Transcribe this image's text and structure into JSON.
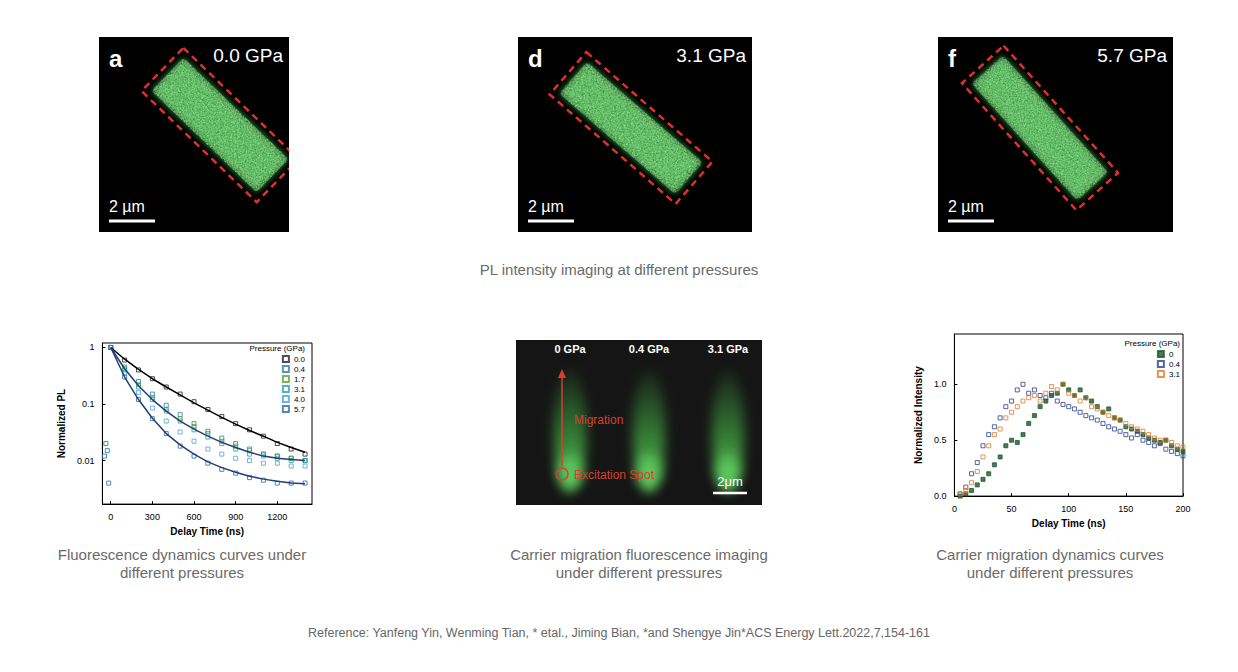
{
  "panels": [
    {
      "letter": "a",
      "pressure": "0.0 GPa",
      "scale_bar": "2 µm"
    },
    {
      "letter": "d",
      "pressure": "3.1 GPa",
      "scale_bar": "2 µm"
    },
    {
      "letter": "f",
      "pressure": "5.7 GPa",
      "scale_bar": "2 µm"
    }
  ],
  "panels_caption": "PL intensity imaging at different pressures",
  "chart_data": [
    {
      "type": "scatter",
      "caption": "Fluorescence dynamics curves under different pressures",
      "x_label": "Delay Time (ns)",
      "y_label": "Normalized PL",
      "log": "y",
      "grid": false,
      "legend": "upper right",
      "legend_title": "Pressure (GPa)",
      "xlim": [
        -60,
        1450
      ],
      "xticks": [
        0,
        300,
        600,
        900,
        1200
      ],
      "ylim": [
        0.0017,
        1.2
      ],
      "yticks": [
        0.01,
        0.1,
        1
      ],
      "series": [
        {
          "name": "0.0",
          "color": "#222222",
          "marker": "open_square",
          "x": [
            0,
            100,
            200,
            300,
            400,
            500,
            600,
            700,
            800,
            900,
            1000,
            1100,
            1200,
            1300,
            1400
          ],
          "values": [
            1,
            0.6,
            0.4,
            0.28,
            0.2,
            0.15,
            0.11,
            0.08,
            0.06,
            0.045,
            0.035,
            0.027,
            0.02,
            0.016,
            0.013
          ],
          "fit": {
            "color": "#000000",
            "x": [
              0,
              100,
              200,
              300,
              400,
              500,
              600,
              700,
              800,
              900,
              1000,
              1100,
              1200,
              1300,
              1400
            ],
            "values": [
              1,
              0.62,
              0.41,
              0.28,
              0.2,
              0.145,
              0.105,
              0.078,
              0.058,
              0.044,
              0.034,
              0.027,
              0.021,
              0.017,
              0.014
            ]
          }
        },
        {
          "name": "0.4",
          "color": "#2a7fa8",
          "marker": "open_square",
          "x": [
            0,
            100,
            200,
            300,
            400,
            500,
            600,
            700,
            800,
            900,
            1000,
            1100,
            1200,
            1300,
            1400
          ],
          "values": [
            1,
            0.45,
            0.25,
            0.15,
            0.095,
            0.065,
            0.045,
            0.033,
            0.025,
            0.02,
            0.016,
            0.013,
            0.012,
            0.011,
            0.01
          ]
        },
        {
          "name": "1.7",
          "color": "#5aa02c",
          "marker": "open_square",
          "x": [
            0,
            100,
            200,
            300,
            400,
            500,
            600,
            700,
            800,
            900,
            1000,
            1100,
            1200,
            1300,
            1400
          ],
          "values": [
            1,
            0.42,
            0.22,
            0.13,
            0.08,
            0.055,
            0.04,
            0.03,
            0.022,
            0.018,
            0.015,
            0.013,
            0.012,
            0.011,
            0.01
          ]
        },
        {
          "name": "3.1",
          "color": "#2a9fb0",
          "marker": "open_square",
          "x": [
            0,
            100,
            200,
            300,
            400,
            500,
            600,
            700,
            800,
            900,
            1000,
            1100,
            1200,
            1300,
            1400
          ],
          "values": [
            1,
            0.4,
            0.2,
            0.12,
            0.075,
            0.05,
            0.035,
            0.026,
            0.02,
            0.016,
            0.013,
            0.012,
            0.011,
            0.01,
            0.01
          ],
          "fit": {
            "color": "#1f3f7a",
            "x": [
              0,
              100,
              200,
              300,
              400,
              500,
              600,
              700,
              800,
              900,
              1000,
              1100,
              1200,
              1300,
              1400
            ],
            "values": [
              1,
              0.42,
              0.21,
              0.12,
              0.075,
              0.05,
              0.036,
              0.027,
              0.021,
              0.017,
              0.014,
              0.012,
              0.011,
              0.0105,
              0.01
            ]
          }
        },
        {
          "name": "4.0",
          "color": "#4aa3d8",
          "marker": "open_square",
          "x": [
            0,
            100,
            200,
            300,
            400,
            500,
            600,
            700,
            800,
            900,
            1000,
            1100,
            1200,
            1300,
            1400
          ],
          "values": [
            1,
            0.35,
            0.16,
            0.085,
            0.05,
            0.032,
            0.022,
            0.016,
            0.013,
            0.011,
            0.01,
            0.009,
            0.009,
            0.008,
            0.008
          ]
        },
        {
          "name": "5.7",
          "color": "#2b6ca3",
          "marker": "open_square",
          "x": [
            -45,
            -35,
            -25,
            -15,
            0,
            100,
            200,
            300,
            400,
            500,
            600,
            700,
            800,
            900,
            1000,
            1100,
            1200,
            1300,
            1400
          ],
          "values": [
            0.012,
            0.02,
            0.015,
            0.004,
            1,
            0.3,
            0.12,
            0.055,
            0.03,
            0.018,
            0.012,
            0.009,
            0.007,
            0.006,
            0.005,
            0.0045,
            0.004,
            0.004,
            0.004
          ],
          "fit": {
            "color": "#1f3f7a",
            "x": [
              0,
              100,
              200,
              300,
              400,
              500,
              600,
              700,
              800,
              900,
              1000,
              1100,
              1200,
              1300,
              1400
            ],
            "values": [
              1,
              0.3,
              0.12,
              0.056,
              0.03,
              0.019,
              0.013,
              0.0095,
              0.0075,
              0.0062,
              0.0053,
              0.0047,
              0.0043,
              0.004,
              0.0039
            ]
          }
        }
      ]
    },
    {
      "type": "scatter",
      "caption": "Carrier migration dynamics curves under different pressures",
      "x_label": "Delay Time (ns)",
      "y_label": "Normalized Intensity",
      "grid": false,
      "legend": "upper right",
      "legend_title": "Pressure (GPa)",
      "xlim": [
        0,
        200
      ],
      "xticks": [
        0,
        50,
        100,
        150,
        200
      ],
      "ylim": [
        0,
        1.45
      ],
      "yticks": [
        {
          "value": 0,
          "label": "0.0"
        },
        {
          "value": 0.5,
          "label": "0.5"
        },
        {
          "value": 1,
          "label": "1.0"
        }
      ],
      "series": [
        {
          "name": "0",
          "color": "#1e5a2a",
          "marker": "filled_square",
          "x": [
            5,
            10,
            15,
            20,
            25,
            30,
            35,
            40,
            45,
            50,
            55,
            60,
            65,
            70,
            75,
            80,
            85,
            90,
            95,
            100,
            105,
            110,
            115,
            120,
            125,
            130,
            135,
            140,
            145,
            150,
            155,
            160,
            165,
            170,
            175,
            180,
            185,
            190,
            195,
            200
          ],
          "values": [
            0,
            0.02,
            0.05,
            0.1,
            0.15,
            0.2,
            0.28,
            0.35,
            0.45,
            0.5,
            0.48,
            0.55,
            0.65,
            0.72,
            0.8,
            0.85,
            0.9,
            0.92,
            1,
            0.95,
            0.9,
            0.95,
            0.88,
            0.85,
            0.8,
            0.75,
            0.78,
            0.7,
            0.68,
            0.62,
            0.6,
            0.58,
            0.55,
            0.52,
            0.5,
            0.48,
            0.5,
            0.45,
            0.42,
            0.4
          ]
        },
        {
          "name": "0.4",
          "color": "#2b3f8f",
          "marker": "open_square",
          "x": [
            5,
            10,
            15,
            20,
            25,
            30,
            35,
            40,
            45,
            50,
            55,
            60,
            65,
            70,
            75,
            80,
            85,
            90,
            95,
            100,
            105,
            110,
            115,
            120,
            125,
            130,
            135,
            140,
            145,
            150,
            155,
            160,
            165,
            170,
            175,
            180,
            185,
            190,
            195,
            200
          ],
          "values": [
            0.02,
            0.08,
            0.2,
            0.3,
            0.45,
            0.55,
            0.62,
            0.7,
            0.8,
            0.85,
            0.95,
            1,
            0.92,
            0.95,
            0.9,
            0.88,
            0.92,
            0.85,
            0.82,
            0.8,
            0.78,
            0.75,
            0.72,
            0.7,
            0.68,
            0.65,
            0.62,
            0.6,
            0.58,
            0.55,
            0.52,
            0.55,
            0.5,
            0.48,
            0.45,
            0.47,
            0.42,
            0.4,
            0.38,
            0.36
          ]
        },
        {
          "name": "3.1",
          "color": "#e07a2e",
          "marker": "open_square",
          "x": [
            5,
            10,
            15,
            20,
            25,
            30,
            35,
            40,
            45,
            50,
            55,
            60,
            65,
            70,
            75,
            80,
            85,
            90,
            95,
            100,
            105,
            110,
            115,
            120,
            125,
            130,
            135,
            140,
            145,
            150,
            155,
            160,
            165,
            170,
            175,
            180,
            185,
            190,
            195,
            200
          ],
          "values": [
            0.02,
            0.05,
            0.12,
            0.22,
            0.35,
            0.45,
            0.55,
            0.6,
            0.7,
            0.75,
            0.8,
            0.85,
            0.88,
            0.9,
            0.85,
            0.92,
            0.98,
            0.95,
            1,
            0.92,
            0.9,
            0.85,
            0.88,
            0.8,
            0.78,
            0.75,
            0.72,
            0.7,
            0.68,
            0.65,
            0.62,
            0.6,
            0.58,
            0.55,
            0.52,
            0.5,
            0.5,
            0.48,
            0.45,
            0.44
          ]
        }
      ]
    }
  ],
  "migration_image": {
    "labels": [
      "0 GPa",
      "0.4 GPa",
      "3.1 GPa"
    ],
    "arrow_label": "Migration",
    "spot_label": "Excitation Spot",
    "scale_bar": "2μm",
    "caption": "Carrier migration fluorescence imaging under different pressures"
  },
  "reference": "Reference:  Yanfeng Yin, Wenming Tian, * etal., Jiming Bian, *and Shengye Jin*ACS Energy Lett.2022,7,154-161"
}
